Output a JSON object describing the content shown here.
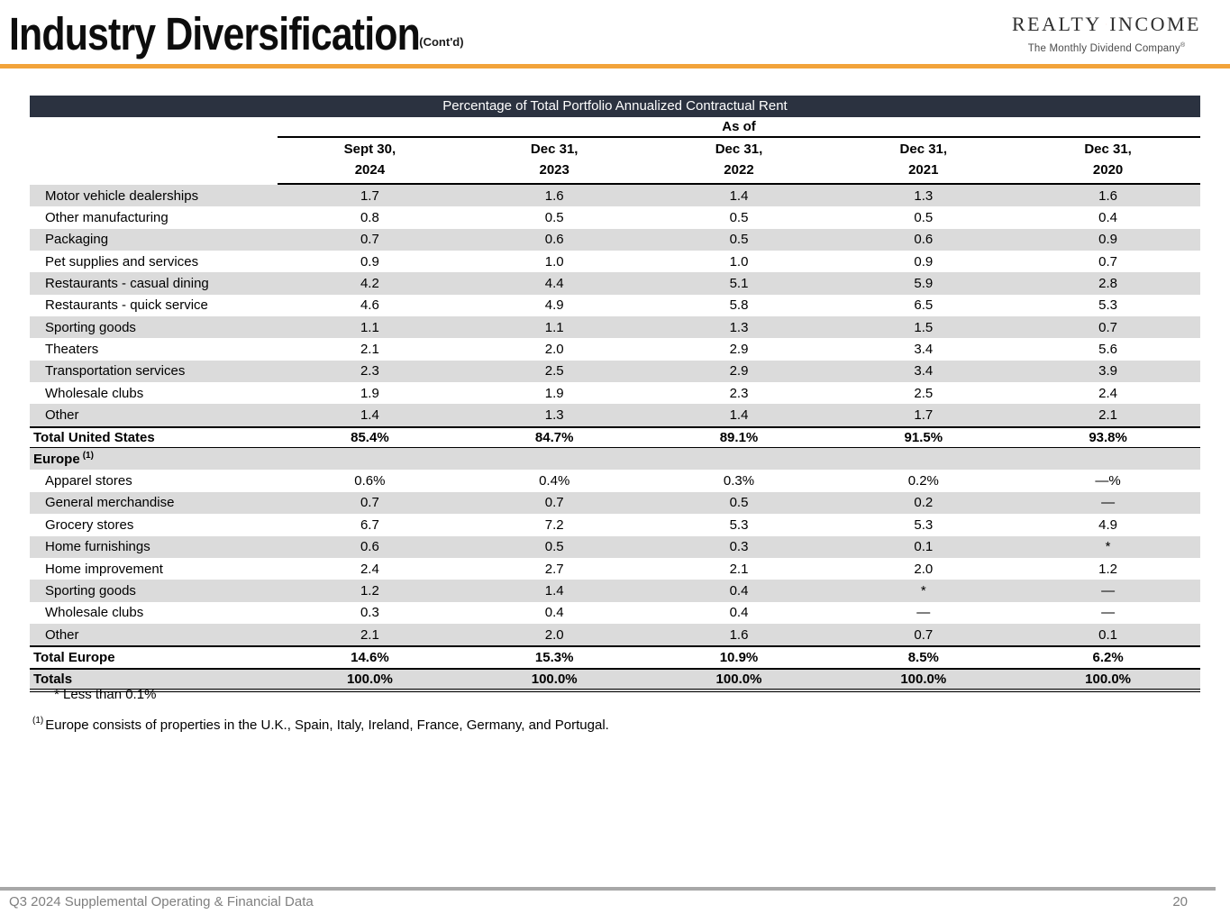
{
  "header": {
    "title": "Industry Diversification",
    "contd": "(Cont'd)"
  },
  "logo": {
    "realty": "REALTY",
    "income": "INCOME",
    "tagline": "The Monthly Dividend Company",
    "reg": "®",
    "icon": "realty-income-house-icon"
  },
  "colors": {
    "accent_orange": "#f2a33a",
    "table_header_bar": "#2b3240",
    "row_stripe": "#dbdbdb",
    "logo_red": "#d7282f",
    "logo_gold": "#f5b335",
    "footer_gray": "#7f7f7f"
  },
  "table": {
    "title": "Percentage of Total Portfolio Annualized Contractual Rent",
    "as_of_label": "As of",
    "columns": [
      {
        "line1": "Sept 30,",
        "line2": "2024"
      },
      {
        "line1": "Dec 31,",
        "line2": "2023"
      },
      {
        "line1": "Dec 31,",
        "line2": "2022"
      },
      {
        "line1": "Dec 31,",
        "line2": "2021"
      },
      {
        "line1": "Dec 31,",
        "line2": "2020"
      }
    ],
    "rows": [
      {
        "label": "Motor vehicle dealerships",
        "values": [
          "1.7",
          "1.6",
          "1.4",
          "1.3",
          "1.6"
        ],
        "style": "item",
        "stripe": true
      },
      {
        "label": "Other manufacturing",
        "values": [
          "0.8",
          "0.5",
          "0.5",
          "0.5",
          "0.4"
        ],
        "style": "item",
        "stripe": false
      },
      {
        "label": "Packaging",
        "values": [
          "0.7",
          "0.6",
          "0.5",
          "0.6",
          "0.9"
        ],
        "style": "item",
        "stripe": true
      },
      {
        "label": "Pet supplies and services",
        "values": [
          "0.9",
          "1.0",
          "1.0",
          "0.9",
          "0.7"
        ],
        "style": "item",
        "stripe": false
      },
      {
        "label": "Restaurants - casual dining",
        "values": [
          "4.2",
          "4.4",
          "5.1",
          "5.9",
          "2.8"
        ],
        "style": "item",
        "stripe": true
      },
      {
        "label": "Restaurants - quick service",
        "values": [
          "4.6",
          "4.9",
          "5.8",
          "6.5",
          "5.3"
        ],
        "style": "item",
        "stripe": false
      },
      {
        "label": "Sporting goods",
        "values": [
          "1.1",
          "1.1",
          "1.3",
          "1.5",
          "0.7"
        ],
        "style": "item",
        "stripe": true
      },
      {
        "label": "Theaters",
        "values": [
          "2.1",
          "2.0",
          "2.9",
          "3.4",
          "5.6"
        ],
        "style": "item",
        "stripe": false
      },
      {
        "label": "Transportation services",
        "values": [
          "2.3",
          "2.5",
          "2.9",
          "3.4",
          "3.9"
        ],
        "style": "item",
        "stripe": true
      },
      {
        "label": "Wholesale clubs",
        "values": [
          "1.9",
          "1.9",
          "2.3",
          "2.5",
          "2.4"
        ],
        "style": "item",
        "stripe": false
      },
      {
        "label": "Other",
        "values": [
          "1.4",
          "1.3",
          "1.4",
          "1.7",
          "2.1"
        ],
        "style": "item",
        "stripe": true
      },
      {
        "label": "Total United States",
        "values": [
          "85.4%",
          "84.7%",
          "89.1%",
          "91.5%",
          "93.8%"
        ],
        "style": "total",
        "stripe": false
      },
      {
        "label": "Europe",
        "sup": "(1)",
        "values": [
          "",
          "",
          "",
          "",
          ""
        ],
        "style": "section",
        "stripe": true
      },
      {
        "label": "Apparel stores",
        "values": [
          "0.6%",
          "0.4%",
          "0.3%",
          "0.2%",
          "—%"
        ],
        "style": "item",
        "stripe": false
      },
      {
        "label": "General merchandise",
        "values": [
          "0.7",
          "0.7",
          "0.5",
          "0.2",
          "—"
        ],
        "style": "item",
        "stripe": true
      },
      {
        "label": "Grocery stores",
        "values": [
          "6.7",
          "7.2",
          "5.3",
          "5.3",
          "4.9"
        ],
        "style": "item",
        "stripe": false
      },
      {
        "label": "Home furnishings",
        "values": [
          "0.6",
          "0.5",
          "0.3",
          "0.1",
          "*"
        ],
        "style": "item",
        "stripe": true
      },
      {
        "label": "Home improvement",
        "values": [
          "2.4",
          "2.7",
          "2.1",
          "2.0",
          "1.2"
        ],
        "style": "item",
        "stripe": false
      },
      {
        "label": "Sporting goods",
        "values": [
          "1.2",
          "1.4",
          "0.4",
          "*",
          "—"
        ],
        "style": "item",
        "stripe": true
      },
      {
        "label": "Wholesale clubs",
        "values": [
          "0.3",
          "0.4",
          "0.4",
          "—",
          "—"
        ],
        "style": "item",
        "stripe": false
      },
      {
        "label": "Other",
        "values": [
          "2.1",
          "2.0",
          "1.6",
          "0.7",
          "0.1"
        ],
        "style": "item",
        "stripe": true
      },
      {
        "label": "Total Europe",
        "values": [
          "14.6%",
          "15.3%",
          "10.9%",
          "8.5%",
          "6.2%"
        ],
        "style": "total2",
        "stripe": false
      },
      {
        "label": "Totals",
        "values": [
          "100.0%",
          "100.0%",
          "100.0%",
          "100.0%",
          "100.0%"
        ],
        "style": "grand",
        "stripe": true
      }
    ]
  },
  "footnotes": {
    "asterisk": "* Less than 0.1%",
    "europe_ref": "(1)",
    "europe_text": "Europe consists of properties in the U.K., Spain, Italy, Ireland, France, Germany, and Portugal."
  },
  "footer": {
    "left": "Q3 2024 Supplemental Operating & Financial Data",
    "page": "20"
  }
}
